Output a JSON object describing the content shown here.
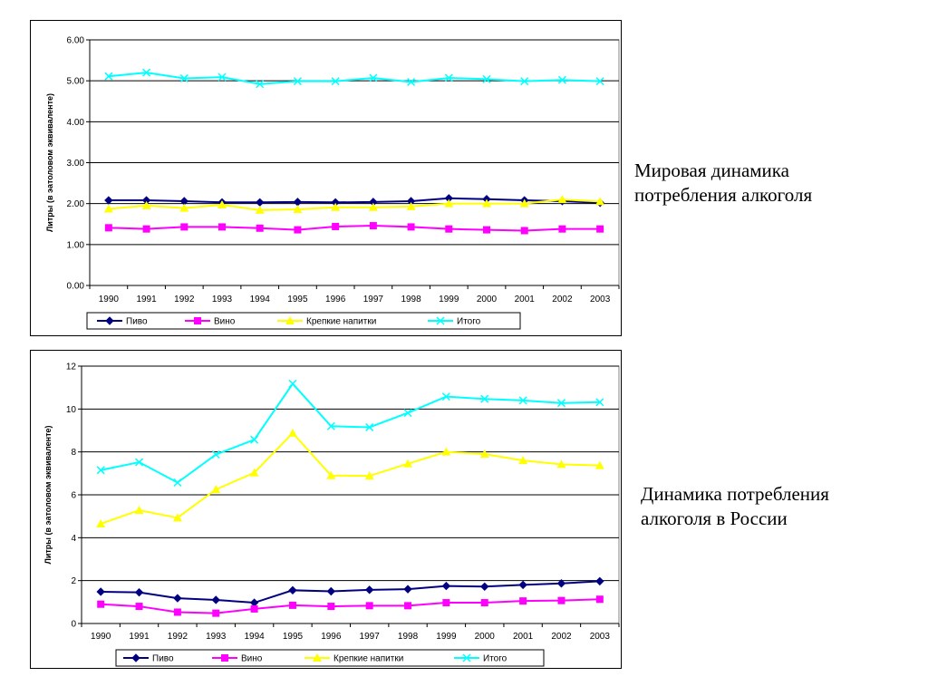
{
  "chart_data": [
    {
      "type": "line",
      "title": "",
      "xlabel": "",
      "ylabel": "Литры (в эатоловом эквиваленте)",
      "ylim": [
        0,
        6
      ],
      "y_ticks": [
        "0.00",
        "1.00",
        "2.00",
        "3.00",
        "4.00",
        "5.00",
        "6.00"
      ],
      "grid": true,
      "legend_position": "bottom",
      "categories": [
        "1990",
        "1991",
        "1992",
        "1993",
        "1994",
        "1995",
        "1996",
        "1997",
        "1998",
        "1999",
        "2000",
        "2001",
        "2002",
        "2003"
      ],
      "series": [
        {
          "name": "Пиво",
          "color": "#000080",
          "marker": "diamond",
          "values": [
            2.08,
            2.08,
            2.06,
            2.03,
            2.03,
            2.04,
            2.03,
            2.04,
            2.06,
            2.13,
            2.11,
            2.08,
            2.06,
            2.02
          ]
        },
        {
          "name": "Вино",
          "color": "#FF00FF",
          "marker": "square",
          "values": [
            1.41,
            1.38,
            1.43,
            1.43,
            1.4,
            1.36,
            1.44,
            1.46,
            1.43,
            1.38,
            1.36,
            1.34,
            1.38,
            1.38
          ]
        },
        {
          "name": "Крепкие напитки",
          "color": "#FFFF00",
          "marker": "triangle",
          "values": [
            1.87,
            1.95,
            1.89,
            1.97,
            1.84,
            1.86,
            1.91,
            1.91,
            1.93,
            2.0,
            2.0,
            2.0,
            2.1,
            2.05
          ]
        },
        {
          "name": "Итого",
          "color": "#00FFFF",
          "marker": "x",
          "values": [
            5.11,
            5.2,
            5.06,
            5.09,
            4.92,
            4.99,
            4.99,
            5.07,
            4.97,
            5.07,
            5.04,
            4.99,
            5.02,
            4.99
          ]
        }
      ]
    },
    {
      "type": "line",
      "title": "",
      "xlabel": "",
      "ylabel": "Литры (в эатоловом эквиваленте)",
      "ylim": [
        0,
        12
      ],
      "y_ticks": [
        "0",
        "2",
        "4",
        "6",
        "8",
        "10",
        "12"
      ],
      "grid": true,
      "legend_position": "bottom",
      "categories": [
        "1990",
        "1991",
        "1992",
        "1993",
        "1994",
        "1995",
        "1996",
        "1997",
        "1998",
        "1999",
        "2000",
        "2001",
        "2002",
        "2003"
      ],
      "series": [
        {
          "name": "Пиво",
          "color": "#000080",
          "marker": "diamond",
          "values": [
            1.48,
            1.45,
            1.18,
            1.1,
            0.97,
            1.55,
            1.5,
            1.57,
            1.6,
            1.75,
            1.72,
            1.8,
            1.87,
            1.97
          ]
        },
        {
          "name": "Вино",
          "color": "#FF00FF",
          "marker": "square",
          "values": [
            0.9,
            0.8,
            0.53,
            0.48,
            0.68,
            0.85,
            0.8,
            0.83,
            0.83,
            0.97,
            0.97,
            1.05,
            1.07,
            1.13
          ]
        },
        {
          "name": "Крепкие напитки",
          "color": "#FFFF00",
          "marker": "triangle",
          "values": [
            4.65,
            5.28,
            4.93,
            6.25,
            7.03,
            8.88,
            6.9,
            6.88,
            7.45,
            8.0,
            7.9,
            7.6,
            7.42,
            7.37
          ]
        },
        {
          "name": "Итого",
          "color": "#00FFFF",
          "marker": "x",
          "values": [
            7.15,
            7.52,
            6.57,
            7.88,
            8.57,
            11.18,
            9.2,
            9.15,
            9.82,
            10.58,
            10.47,
            10.4,
            10.28,
            10.32
          ]
        }
      ]
    }
  ],
  "captions": [
    {
      "lines": [
        "Мировая динамика",
        "потребления алкоголя"
      ]
    },
    {
      "lines": [
        "Динамика потребления",
        "алкоголя в России"
      ]
    }
  ]
}
